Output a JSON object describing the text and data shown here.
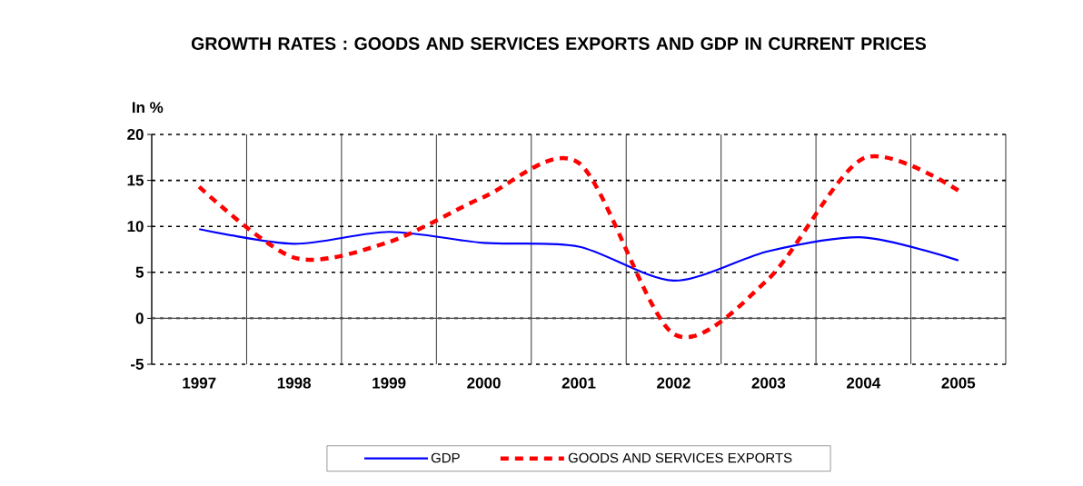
{
  "chart_data": {
    "type": "line",
    "title": "GROWTH RATES : GOODS AND SERVICES EXPORTS AND GDP IN CURRENT PRICES",
    "ylabel": "In %",
    "x": [
      1997,
      1998,
      1999,
      2000,
      2001,
      2002,
      2003,
      2004,
      2005
    ],
    "series": [
      {
        "name": "GDP",
        "color": "#0000ff",
        "line_style": "solid",
        "values": [
          9.7,
          8.1,
          9.4,
          8.2,
          7.8,
          4.1,
          7.3,
          8.8,
          6.3
        ]
      },
      {
        "name": "GOODS AND SERVICES EXPORTS",
        "color": "#ff0000",
        "line_style": "dashed",
        "values": [
          14.3,
          6.6,
          8.3,
          13.2,
          16.9,
          -1.7,
          4.3,
          17.4,
          13.9
        ]
      }
    ],
    "xlim": [
      1996.5,
      2005.5
    ],
    "xticks": [
      {
        "value": 1996.5,
        "label": null
      },
      1997,
      {
        "value": 1997.5,
        "label": null
      },
      1998,
      {
        "value": 1998.5,
        "label": null
      },
      1999,
      {
        "value": 1999.5,
        "label": null
      },
      2000,
      {
        "value": 2000.5,
        "label": null
      },
      2001,
      {
        "value": 2001.5,
        "label": null
      },
      2002,
      {
        "value": 2002.5,
        "label": null
      },
      2003,
      {
        "value": 2003.5,
        "label": null
      },
      2004,
      {
        "value": 2004.5,
        "label": null
      },
      2005,
      {
        "value": 2005.5,
        "label": null
      }
    ],
    "ylim": [
      -5,
      20
    ],
    "yticks": [
      -5,
      0,
      5,
      10,
      15,
      20
    ],
    "ref_lines": [
      {
        "axis": "y",
        "value": 0
      }
    ],
    "grid": true,
    "legend": "bottom",
    "marker": "none"
  }
}
